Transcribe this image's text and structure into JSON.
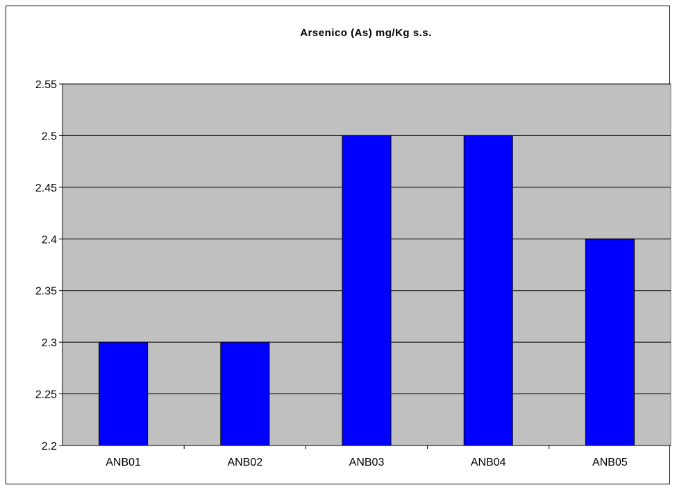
{
  "chart_data": {
    "type": "bar",
    "title": "Arsenico (As) mg/Kg s.s.",
    "xlabel": "",
    "ylabel": "",
    "categories": [
      "ANB01",
      "ANB02",
      "ANB03",
      "ANB04",
      "ANB05"
    ],
    "values": [
      2.3,
      2.3,
      2.5,
      2.5,
      2.4
    ],
    "ylim": [
      2.2,
      2.55
    ],
    "yticks": [
      "2.2",
      "2.25",
      "2.3",
      "2.35",
      "2.4",
      "2.45",
      "2.5",
      "2.55"
    ],
    "grid": true,
    "legend": "none",
    "colors": {
      "bar": "#0000ff",
      "plot_background": "#c0c0c0",
      "gridline": "#000000"
    }
  }
}
